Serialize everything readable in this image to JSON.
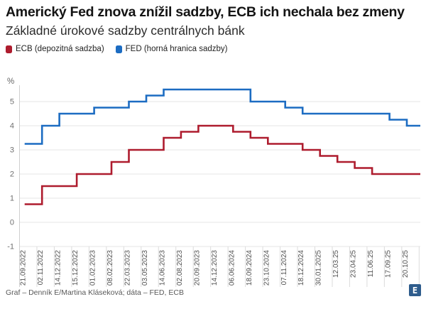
{
  "header": {
    "title": "Americký Fed znova znížil sadzby, ECB ich nechala bez zmeny",
    "subtitle": "Základné úrokové sadzby centrálnych bánk"
  },
  "legend": [
    {
      "label": "ECB (depozitná sadzba)",
      "color": "#ae1c2e"
    },
    {
      "label": "FED (horná hranica sadzby)",
      "color": "#1c6cc2"
    }
  ],
  "chart_data": {
    "type": "line",
    "step": true,
    "unit": "%",
    "title": "Základné úrokové sadzby centrálnych bánk",
    "categories": [
      "21.09.2022",
      "02.11.2022",
      "14.12.2022",
      "15.12.2022",
      "01.02.2023",
      "08.02.2023",
      "22.03.2023",
      "03.05.2023",
      "14.06.2023",
      "02.08.2023",
      "20.09.2023",
      "14.12.2023",
      "06.06.2024",
      "18.09.2024",
      "23.10.2024",
      "07.11.2024",
      "18.12.2024",
      "30.01.2025",
      "12.03.25",
      "23.04.25",
      "11.06.25",
      "17.09.25",
      "20.10.25"
    ],
    "series": [
      {
        "name": "FED (horná hranica sadzby)",
        "color": "#1c6cc2",
        "values": [
          3.25,
          4.0,
          4.5,
          4.5,
          4.75,
          4.75,
          5.0,
          5.25,
          5.5,
          5.5,
          5.5,
          5.5,
          5.5,
          5.0,
          5.0,
          4.75,
          4.5,
          4.5,
          4.5,
          4.5,
          4.5,
          4.25,
          4.0
        ]
      },
      {
        "name": "ECB (depozitná sadzba)",
        "color": "#ae1c2e",
        "values": [
          0.75,
          1.5,
          1.5,
          2.0,
          2.0,
          2.5,
          3.0,
          3.0,
          3.5,
          3.75,
          4.0,
          4.0,
          3.75,
          3.5,
          3.25,
          3.25,
          3.0,
          2.75,
          2.5,
          2.25,
          2.0,
          2.0,
          2.0
        ]
      }
    ],
    "yticks": [
      5,
      4,
      3,
      2,
      1,
      0,
      -1
    ],
    "ylim": [
      -1,
      5.75
    ],
    "grid": "horizontal",
    "legend_position": "top"
  },
  "footer": {
    "credit": "Graf – Denník E/Martina Kláseková; dáta – FED, ECB",
    "logo_text": "E"
  }
}
